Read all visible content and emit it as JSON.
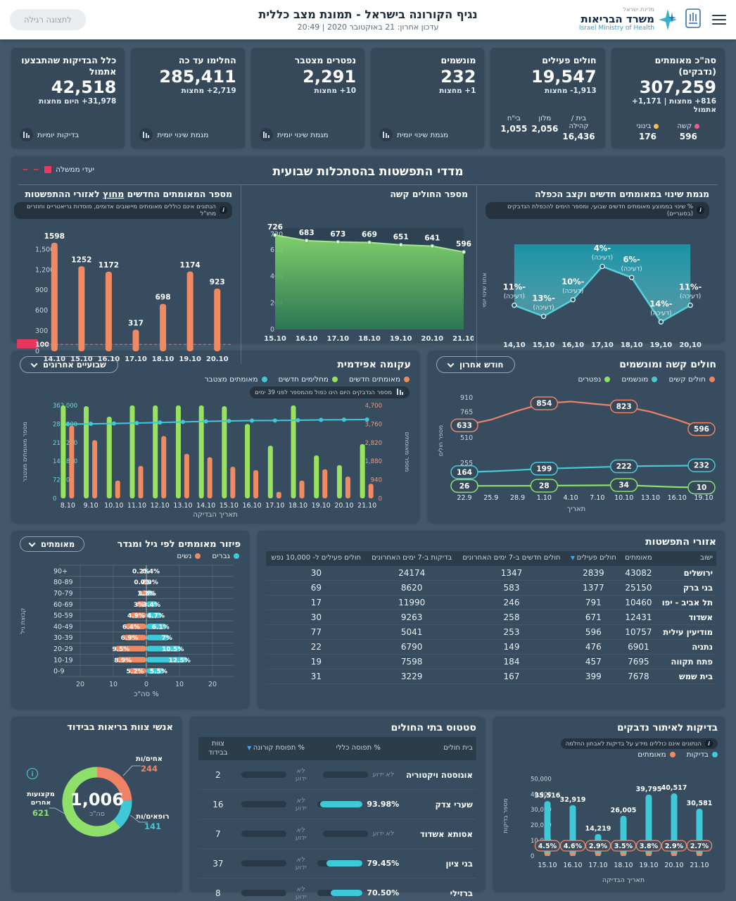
{
  "header": {
    "logo": {
      "state": "מדינת ישראל",
      "he": "משרד הבריאות",
      "en": "Israel Ministry of Health"
    },
    "title": "נגיף הקורונה בישראל - תמונת מצב כללית",
    "subtitle": "עדכון אחרון: 21 באוקטובר 2020 | 20:49",
    "view_toggle_label": "לתצוגה רגילה"
  },
  "kpi_cards": [
    {
      "title": "סה\"כ מאומתים (נדבקים)",
      "value": "307,259",
      "sub": "816+ מחצות | 1,171+ אתמול",
      "footer_stats": [
        {
          "label": "קשה",
          "value": "596",
          "color": "#ef5d8f"
        },
        {
          "label": "בינוני",
          "value": "176",
          "color": "#efc24b"
        }
      ]
    },
    {
      "title": "חולים פעילים",
      "value": "19,547",
      "sub": "1,913- מחצות",
      "footer_stats": [
        {
          "label": "בית / קהילה",
          "value": "16,436"
        },
        {
          "label": "מלון",
          "value": "2,056"
        },
        {
          "label": "בי\"ח",
          "value": "1,055"
        }
      ]
    },
    {
      "title": "מונשמים",
      "value": "232",
      "sub": "1+ מחצות",
      "footer_link": "מגמת שינוי יומית"
    },
    {
      "title": "נפטרים מצטבר",
      "value": "2,291",
      "sub": "10+ מחצות",
      "footer_link": "מגמת שינוי יומית"
    },
    {
      "title": "החלימו עד כה",
      "value": "285,411",
      "sub": "2,719+ מחצות",
      "footer_link": "מגמת שינוי יומית"
    },
    {
      "title": "כלל הבדיקות שהתבצעו אתמול",
      "value": "42,518",
      "sub": "31,978+ היום מחצות",
      "footer_link": "בדיקות יומיות"
    }
  ],
  "weekly_section": {
    "title": "מדדי התפשטות בהסתכלות שבועית",
    "legend_label": "יעדי ממשלה",
    "target_color": "#ea3a5f"
  },
  "spread_table": {
    "title": "אזורי התפשטות",
    "columns": [
      "ישוב",
      "מאומתים",
      "חולים פעילים",
      "חולים חדשים ב-7 ימים האחרונים",
      "בדיקות ב-7 ימים האחרונים",
      "חולים פעילים ל- 10,000 נפש"
    ],
    "sorted_column_index": 2,
    "rows": [
      [
        "ירושלים",
        "43082",
        "2839",
        "1347",
        "24174",
        "30"
      ],
      [
        "בני ברק",
        "25150",
        "1377",
        "583",
        "8620",
        "69"
      ],
      [
        "תל אביב - יפו",
        "10460",
        "791",
        "246",
        "11990",
        "17"
      ],
      [
        "אשדוד",
        "12431",
        "671",
        "258",
        "9263",
        "30"
      ],
      [
        "מודיעין עילית",
        "10757",
        "596",
        "253",
        "5041",
        "77"
      ],
      [
        "נתניה",
        "6901",
        "476",
        "149",
        "6790",
        "22"
      ],
      [
        "פתח תקווה",
        "7695",
        "457",
        "184",
        "7598",
        "19"
      ],
      [
        "בית שמש",
        "7678",
        "399",
        "167",
        "3229",
        "31"
      ]
    ]
  },
  "hospitals_table": {
    "title": "סטטוס בתי החולים",
    "columns": [
      "בית חולים",
      "% תפוסה כללי",
      "% תפוסת קורונה",
      "צוות בבידוד"
    ],
    "unknown_label": "לא ידוע",
    "rows": [
      {
        "name": "אוגוסטה ויקטוריה",
        "overall": null,
        "overall_display": null,
        "corona": null,
        "staff": "2"
      },
      {
        "name": "שערי צדק",
        "overall": 93.98,
        "overall_display": "93.98%",
        "corona": null,
        "staff": "16"
      },
      {
        "name": "אסותא אשדוד",
        "overall": null,
        "overall_display": null,
        "corona": null,
        "staff": "7"
      },
      {
        "name": "בני ציון",
        "overall": 79.45,
        "overall_display": "79.45%",
        "corona": null,
        "staff": "37"
      },
      {
        "name": "ברזילי",
        "overall": 70.5,
        "overall_display": "70.50%",
        "corona": null,
        "staff": "8"
      }
    ]
  },
  "chart_data": [
    {
      "id": "trend",
      "type": "line",
      "title": "מגמת שינוי במאומתים חדשים וקצב הכפלה",
      "note": "% שינוי בממוצע מאומתים חדשים שבועי, ומספר הימים להכפלת הנדבקים (בסוגריים)",
      "ylabel": "אחוז שינוי יומי",
      "categories": [
        "14,10",
        "15,10",
        "16,10",
        "17,10",
        "18,10",
        "19,10",
        "20,10"
      ],
      "values": [
        -11,
        -13,
        -10,
        -4,
        -6,
        -14,
        -11
      ],
      "labels": [
        "-11%",
        "-13%",
        "-10%",
        "-4%",
        "-6%",
        "-14%",
        "-11%"
      ],
      "sublabel": "(דעיכה)",
      "color": "#49c9d6",
      "ylim": [
        -16.5,
        0
      ]
    },
    {
      "id": "severe_area",
      "type": "area",
      "title": "מספר החולים קשה",
      "categories": [
        "15.10",
        "16.10",
        "17.10",
        "18.10",
        "19.10",
        "20.10",
        "21.10"
      ],
      "values": [
        726,
        683,
        673,
        669,
        651,
        641,
        596
      ],
      "yticks": [
        0,
        204,
        408,
        612,
        730
      ],
      "ylim": [
        0,
        780
      ],
      "color": "#7fd36b"
    },
    {
      "id": "new_outside",
      "type": "bar",
      "title_a": "מספר המאומתים החדשים ",
      "title_u": "מחוץ",
      "title_b": " לאזורי ההתפשטות",
      "note": "הנתונים אינם כוללים מאומתים מיישובים אדומים, מוסדות גריאטריים וחוזרים מחו\"ל",
      "categories": [
        "14.10",
        "15.10",
        "16.10",
        "17.10",
        "18.10",
        "19.10",
        "20.10"
      ],
      "values": [
        1598,
        1252,
        1172,
        317,
        698,
        1174,
        923
      ],
      "yticks": [
        0,
        100,
        300,
        600,
        900,
        1200,
        1500
      ],
      "target": 100,
      "ylim": [
        0,
        1680
      ],
      "color": "#f08a63"
    },
    {
      "id": "epidemic",
      "type": "bar+line",
      "title": "עקומה אפידמית",
      "dropdown": "שבועיים אחרונים",
      "note": "מספר הנדבקים היום הינו כפול מהמספר לפני 39 ימים",
      "xlabel": "תאריך הבדיקה",
      "ylabel_left": "מספר מאומתים מצטבר",
      "ylabel_right": "מספר מאומתים",
      "categories": [
        "8.10",
        "9.10",
        "10.10",
        "11.10",
        "12.10",
        "13.10",
        "14.10",
        "15.10",
        "16.10",
        "17.10",
        "18.10",
        "19.10",
        "20.10",
        "21.10"
      ],
      "series": [
        {
          "name": "מאומתים חדשים",
          "kind": "bar",
          "axis": "right",
          "color": "#f08a63",
          "values": [
            3680,
            2940,
            900,
            1640,
            3150,
            2250,
            2080,
            1600,
            1430,
            330,
            900,
            1470,
            1100,
            740
          ]
        },
        {
          "name": "מחלימים חדשים",
          "kind": "bar",
          "axis": "right",
          "color": "#97e35f",
          "values": [
            4700,
            4660,
            4130,
            4700,
            4700,
            4700,
            4700,
            4660,
            3760,
            2660,
            4700,
            2170,
            1680,
            2740
          ]
        },
        {
          "name": "מאומתים מצטבר",
          "kind": "line",
          "axis": "left",
          "color": "#3fc9d8",
          "values": [
            289000,
            290500,
            291800,
            293400,
            295600,
            297800,
            299900,
            301500,
            303000,
            303400,
            304300,
            305800,
            306500,
            307259
          ]
        }
      ],
      "left_ticks": [
        0,
        72400,
        144800,
        217200,
        289600,
        362000
      ],
      "right_ticks": [
        0,
        940,
        1880,
        2820,
        3760,
        4700
      ]
    },
    {
      "id": "severe_vent",
      "type": "line",
      "title": "חולים קשה ומונשמים",
      "dropdown": "חודש אחרון",
      "xlabel": "תאריך",
      "ylabel": "מספר חולים",
      "categories": [
        "22.9",
        "25.9",
        "28.9",
        "1.10",
        "4.10",
        "7.10",
        "10.10",
        "13.10",
        "16.10",
        "19.10"
      ],
      "yticks": [
        0,
        255,
        510,
        765,
        910
      ],
      "ylim": [
        0,
        960
      ],
      "series": [
        {
          "name": "חולים קשים",
          "color": "#ef8265",
          "values": [
            633,
            690,
            780,
            854,
            872,
            846,
            823,
            770,
            690,
            596
          ],
          "labels": {
            "0": "633",
            "3": "854",
            "6": "823",
            "9": "596"
          }
        },
        {
          "name": "מונשמים",
          "color": "#49c9d6",
          "values": [
            164,
            172,
            185,
            199,
            206,
            214,
            222,
            226,
            228,
            232
          ],
          "labels": {
            "0": "164",
            "3": "199",
            "6": "222",
            "9": "232"
          }
        },
        {
          "name": "נפטרים",
          "color": "#8ee06a",
          "values": [
            26,
            27,
            27,
            28,
            30,
            32,
            34,
            24,
            14,
            10
          ],
          "labels": {
            "0": "26",
            "3": "28",
            "6": "34",
            "9": "10"
          }
        }
      ]
    },
    {
      "id": "tests",
      "type": "bar",
      "title": "בדיקות לאיתור נדבקים",
      "note": "הנתונים אינם כוללים מידע על בדיקות לאבחון החלמה",
      "xlabel": "תאריך הבדיקה",
      "ylabel": "מספר בדיקות",
      "categories": [
        "15.10",
        "16.10",
        "17.10",
        "18.10",
        "19.10",
        "20.10",
        "21.10"
      ],
      "yticks": [
        0,
        10000,
        20000,
        30000,
        40000,
        50000
      ],
      "ylim": [
        0,
        52000
      ],
      "series": [
        {
          "name": "בדיקות",
          "color": "#3fc9d8",
          "values": [
            35516,
            32919,
            14219,
            26005,
            39795,
            40517,
            30581
          ],
          "display": [
            "35,516",
            "32,919",
            "14,219",
            "26,005",
            "39,795",
            "40,517",
            "30,581"
          ]
        },
        {
          "name": "מאומתים",
          "color": "#f08a63",
          "badges": [
            "4.5%",
            "4.6%",
            "2.9%",
            "3.5%",
            "3.8%",
            "2.9%",
            "2.7%"
          ]
        }
      ]
    },
    {
      "id": "pyramid",
      "type": "bar",
      "title": "פיזור מאומתים לפי גיל ומגדר",
      "dropdown": "מאומתים",
      "xlabel": "% סה\"כ",
      "ylabel": "קבוצת גיל",
      "xticks": [
        "20",
        "10",
        "0",
        "10",
        "20"
      ],
      "xmax": 20,
      "age_groups": [
        "+90",
        "80-89",
        "70-79",
        "60-69",
        "50-59",
        "40-49",
        "30-39",
        "20-29",
        "10-19",
        "0-9"
      ],
      "men": {
        "name": "גברים",
        "color": "#3fc9d8",
        "values": [
          0.2,
          0.7,
          1.7,
          3.4,
          4.7,
          6.1,
          7,
          10.5,
          12.5,
          5.5
        ],
        "labels": [
          "0.2%",
          "0.7%",
          "1.7%",
          "3.4%",
          "4.7%",
          "6.1%",
          "7%",
          "10.5%",
          "12.5%",
          "5.5%"
        ]
      },
      "women": {
        "name": "נשים",
        "color": "#f08a63",
        "values": [
          0.4,
          0.9,
          1.5,
          3,
          4.9,
          6.4,
          6.9,
          9.5,
          8.9,
          5.2
        ],
        "labels": [
          "0.4%",
          "0.9%",
          "1.5%",
          "3%",
          "4.9%",
          "6.4%",
          "6.9%",
          "9.5%",
          "8.9%",
          "5.2%"
        ]
      }
    },
    {
      "id": "isolation",
      "type": "pie",
      "title": "אנשי צוות בריאות בבידוד",
      "center_value": "1,006",
      "center_label": "סה\"כ",
      "slices": [
        {
          "label": "אחים/ות",
          "value": 244,
          "display": "244",
          "color": "#ef8265"
        },
        {
          "label": "רופאים/ות",
          "value": 141,
          "display": "141",
          "color": "#3fc9d8"
        },
        {
          "label": "מקצועות אחרים",
          "value": 621,
          "display": "621",
          "color": "#8ee06a"
        }
      ]
    }
  ]
}
